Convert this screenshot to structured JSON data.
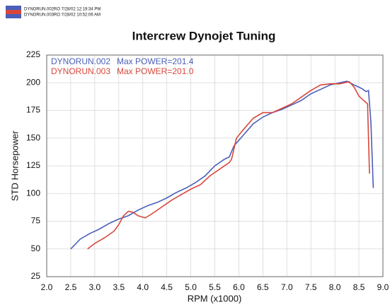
{
  "chart_data": {
    "type": "line",
    "run_labels": [
      "DYNORUN.002RO  7/28/02 12:19:34 PM",
      "DYNORUN.003RO  7/28/02 10:52:06 AM"
    ],
    "title": "Intercrew Dynojet Tuning",
    "xlabel": "RPM (x1000)",
    "ylabel": "STD Horsepower",
    "xlim": [
      2.0,
      9.0
    ],
    "xticks": [
      {
        "value": 2,
        "label": "2.0"
      },
      {
        "value": 2.5,
        "label": "2.5"
      },
      {
        "value": 3,
        "label": "3.0"
      },
      {
        "value": 3.5,
        "label": "3.5"
      },
      {
        "value": 4,
        "label": "4.0"
      },
      {
        "value": 4.5,
        "label": "4.5"
      },
      {
        "value": 5,
        "label": "5.0"
      },
      {
        "value": 5.5,
        "label": "5.5"
      },
      {
        "value": 6,
        "label": "6.0"
      },
      {
        "value": 6.5,
        "label": "6.5"
      },
      {
        "value": 7,
        "label": "7.0"
      },
      {
        "value": 7.5,
        "label": "7.5"
      },
      {
        "value": 8,
        "label": "8.0"
      },
      {
        "value": 8.5,
        "label": "8.5"
      },
      {
        "value": 9,
        "label": "9.0"
      }
    ],
    "ylim": [
      25,
      225
    ],
    "yticks": [
      25,
      50,
      75,
      100,
      125,
      150,
      175,
      200,
      225
    ],
    "grid": true,
    "series": [
      {
        "name": "DYNORUN.002",
        "note": "Max POWER=201.4",
        "color": "#4a5fb8",
        "x": [
          2.5,
          2.7,
          2.9,
          3.1,
          3.3,
          3.5,
          3.7,
          3.9,
          4.1,
          4.3,
          4.5,
          4.7,
          4.9,
          5.1,
          5.3,
          5.5,
          5.7,
          5.8,
          5.9,
          6.1,
          6.3,
          6.5,
          6.7,
          6.9,
          7.1,
          7.3,
          7.5,
          7.7,
          7.9,
          8.1,
          8.25,
          8.4,
          8.55,
          8.65,
          8.7,
          8.75,
          8.8
        ],
        "values": [
          50,
          59,
          64,
          68,
          73,
          77,
          80,
          85,
          89,
          92,
          96,
          101,
          105,
          110,
          116,
          125,
          131,
          133,
          143,
          153,
          163,
          169,
          173,
          176,
          180,
          184,
          190,
          194,
          198,
          200,
          201.4,
          198,
          195,
          192,
          193,
          165,
          105
        ]
      },
      {
        "name": "DYNORUN.003",
        "note": "Max POWER=201.0",
        "color": "#d9473b",
        "x": [
          2.85,
          3.0,
          3.2,
          3.4,
          3.5,
          3.6,
          3.7,
          3.8,
          3.9,
          4.05,
          4.2,
          4.4,
          4.6,
          4.8,
          5.0,
          5.2,
          5.4,
          5.6,
          5.8,
          5.85,
          5.95,
          6.1,
          6.3,
          6.5,
          6.7,
          6.9,
          7.1,
          7.3,
          7.5,
          7.7,
          7.9,
          8.1,
          8.3,
          8.4,
          8.5,
          8.6,
          8.68,
          8.72
        ],
        "values": [
          50,
          55,
          60,
          66,
          72,
          80,
          84,
          83,
          80,
          78,
          82,
          88,
          94,
          99,
          104,
          108,
          116,
          122,
          128,
          131,
          150,
          158,
          168,
          173,
          173,
          177,
          181,
          187,
          193,
          198,
          199,
          199,
          201,
          196,
          188,
          184,
          181,
          118
        ]
      }
    ]
  }
}
